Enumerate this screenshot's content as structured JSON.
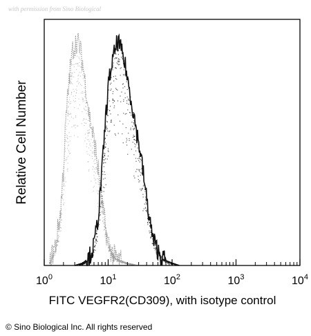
{
  "watermark": "with permission from Sino Biological",
  "copyright": "© Sino Biological Inc. All rights reserved",
  "chart_data": {
    "type": "area",
    "title": "",
    "xlabel": "FITC VEGFR2(CD309), with isotype control",
    "ylabel": "Relative Cell Number",
    "xscale": "log",
    "xlim": [
      1,
      10000
    ],
    "ylim": [
      0,
      100
    ],
    "x_ticks": [
      {
        "base": "10",
        "exp": "0"
      },
      {
        "base": "10",
        "exp": "1"
      },
      {
        "base": "10",
        "exp": "2"
      },
      {
        "base": "10",
        "exp": "3"
      },
      {
        "base": "10",
        "exp": "4"
      }
    ],
    "grid": false,
    "legend": "none",
    "series": [
      {
        "role": "isotype control",
        "color": "#9a9a9a",
        "x": [
          1.2,
          1.5,
          1.8,
          2.0,
          2.2,
          2.5,
          2.8,
          3.2,
          3.6,
          4.0,
          4.5,
          5.0,
          5.6,
          6.3,
          7.1,
          8.0,
          9.0,
          10.0,
          11.5,
          13,
          16,
          20,
          25,
          30
        ],
        "y": [
          1,
          8,
          22,
          40,
          60,
          78,
          88,
          91,
          89,
          82,
          72,
          62,
          55,
          48,
          38,
          26,
          16,
          9,
          5,
          3,
          2,
          1,
          0.5,
          0
        ]
      },
      {
        "role": "VEGFR2 (CD309)",
        "color": "#111111",
        "x": [
          3.0,
          4.0,
          5.0,
          6.0,
          7.0,
          8.0,
          9.0,
          10.0,
          11.0,
          12.0,
          13.0,
          14.0,
          15.0,
          16.0,
          17.0,
          18.0,
          19.0,
          20.0,
          22.0,
          25.0,
          28.0,
          32.0,
          36.0,
          40.0,
          45.0,
          50.0,
          60.0,
          70.0,
          80.0,
          100.0,
          130.0
        ],
        "y": [
          0,
          1,
          3,
          8,
          20,
          38,
          58,
          72,
          80,
          84,
          88,
          91,
          90,
          87,
          85,
          82,
          80,
          76,
          70,
          62,
          54,
          46,
          36,
          27,
          18,
          11,
          6,
          3,
          2,
          1,
          0
        ]
      }
    ]
  }
}
